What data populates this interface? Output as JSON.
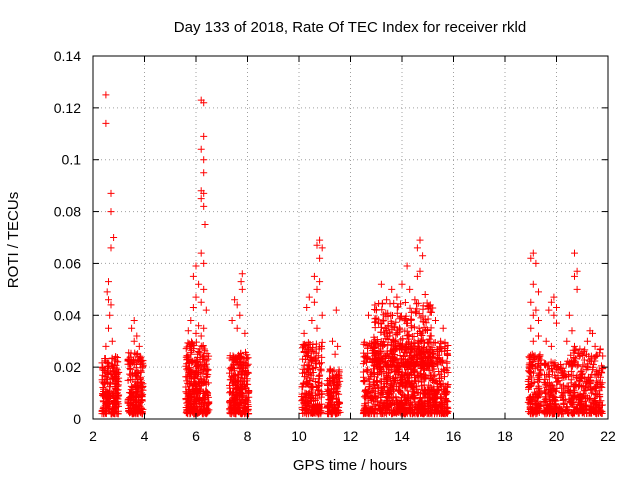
{
  "chart_data": {
    "type": "scatter",
    "title": "Day 133 of 2018, Rate Of TEC Index for receiver rkld",
    "xlabel": "GPS time / hours",
    "ylabel": "ROTI / TECUs",
    "xlim": [
      2,
      22
    ],
    "ylim": [
      0,
      0.14
    ],
    "x_ticks": [
      "2",
      "4",
      "6",
      "8",
      "10",
      "12",
      "14",
      "16",
      "18",
      "20",
      "22"
    ],
    "y_ticks": [
      "0",
      "0.02",
      "0.04",
      "0.06",
      "0.08",
      "0.1",
      "0.12",
      "0.14"
    ],
    "grid": true,
    "marker": "+",
    "color": "#ff0000",
    "series": [
      {
        "name": "ROTI",
        "clusters": [
          {
            "x": [
              2.35,
              3.0
            ],
            "y": [
              0.002,
              0.024
            ],
            "n": 220
          },
          {
            "x": [
              3.35,
              3.95
            ],
            "y": [
              0.002,
              0.026
            ],
            "n": 200
          },
          {
            "x": [
              5.6,
              6.5
            ],
            "y": [
              0.002,
              0.03
            ],
            "n": 320
          },
          {
            "x": [
              7.3,
              8.05
            ],
            "y": [
              0.002,
              0.026
            ],
            "n": 260
          },
          {
            "x": [
              10.1,
              10.9
            ],
            "y": [
              0.002,
              0.03
            ],
            "n": 220
          },
          {
            "x": [
              11.1,
              11.6
            ],
            "y": [
              0.002,
              0.02
            ],
            "n": 130
          },
          {
            "x": [
              12.5,
              15.8
            ],
            "y": [
              0.002,
              0.03
            ],
            "n": 900
          },
          {
            "x": [
              12.9,
              15.2
            ],
            "y": [
              0.02,
              0.045
            ],
            "n": 300
          },
          {
            "x": [
              18.9,
              19.4
            ],
            "y": [
              0.002,
              0.025
            ],
            "n": 140
          },
          {
            "x": [
              19.5,
              20.4
            ],
            "y": [
              0.002,
              0.022
            ],
            "n": 180
          },
          {
            "x": [
              20.4,
              21.8
            ],
            "y": [
              0.002,
              0.027
            ],
            "n": 300
          }
        ],
        "points": [
          [
            2.5,
            0.125
          ],
          [
            2.5,
            0.114
          ],
          [
            2.7,
            0.087
          ],
          [
            2.7,
            0.08
          ],
          [
            2.8,
            0.07
          ],
          [
            2.7,
            0.066
          ],
          [
            2.6,
            0.053
          ],
          [
            2.55,
            0.049
          ],
          [
            2.6,
            0.046
          ],
          [
            2.7,
            0.044
          ],
          [
            2.65,
            0.04
          ],
          [
            2.6,
            0.035
          ],
          [
            2.75,
            0.03
          ],
          [
            2.5,
            0.028
          ],
          [
            3.6,
            0.038
          ],
          [
            3.5,
            0.035
          ],
          [
            3.7,
            0.032
          ],
          [
            3.6,
            0.03
          ],
          [
            3.8,
            0.028
          ],
          [
            6.2,
            0.123
          ],
          [
            6.3,
            0.122
          ],
          [
            6.3,
            0.109
          ],
          [
            6.2,
            0.104
          ],
          [
            6.3,
            0.1
          ],
          [
            6.3,
            0.095
          ],
          [
            6.2,
            0.088
          ],
          [
            6.3,
            0.087
          ],
          [
            6.2,
            0.085
          ],
          [
            6.3,
            0.082
          ],
          [
            6.35,
            0.075
          ],
          [
            6.2,
            0.064
          ],
          [
            6.3,
            0.06
          ],
          [
            6.0,
            0.059
          ],
          [
            5.9,
            0.055
          ],
          [
            6.1,
            0.052
          ],
          [
            6.3,
            0.05
          ],
          [
            6.0,
            0.047
          ],
          [
            6.2,
            0.045
          ],
          [
            5.9,
            0.043
          ],
          [
            6.4,
            0.042
          ],
          [
            5.8,
            0.038
          ],
          [
            6.1,
            0.036
          ],
          [
            6.3,
            0.035
          ],
          [
            5.7,
            0.034
          ],
          [
            6.0,
            0.033
          ],
          [
            6.2,
            0.032
          ],
          [
            7.8,
            0.056
          ],
          [
            7.75,
            0.053
          ],
          [
            7.8,
            0.05
          ],
          [
            7.5,
            0.046
          ],
          [
            7.6,
            0.044
          ],
          [
            7.7,
            0.04
          ],
          [
            7.4,
            0.038
          ],
          [
            7.6,
            0.035
          ],
          [
            7.9,
            0.033
          ],
          [
            10.8,
            0.069
          ],
          [
            10.7,
            0.067
          ],
          [
            10.9,
            0.066
          ],
          [
            10.8,
            0.062
          ],
          [
            10.6,
            0.055
          ],
          [
            10.8,
            0.053
          ],
          [
            10.7,
            0.05
          ],
          [
            10.4,
            0.047
          ],
          [
            10.6,
            0.045
          ],
          [
            10.3,
            0.043
          ],
          [
            10.9,
            0.04
          ],
          [
            10.5,
            0.038
          ],
          [
            10.7,
            0.035
          ],
          [
            10.2,
            0.033
          ],
          [
            11.45,
            0.042
          ],
          [
            11.3,
            0.03
          ],
          [
            11.5,
            0.028
          ],
          [
            11.4,
            0.025
          ],
          [
            14.7,
            0.069
          ],
          [
            14.6,
            0.066
          ],
          [
            14.8,
            0.063
          ],
          [
            14.2,
            0.059
          ],
          [
            14.7,
            0.057
          ],
          [
            14.6,
            0.055
          ],
          [
            13.2,
            0.052
          ],
          [
            14.0,
            0.052
          ],
          [
            13.6,
            0.05
          ],
          [
            14.3,
            0.05
          ],
          [
            14.9,
            0.048
          ],
          [
            13.8,
            0.047
          ],
          [
            14.5,
            0.046
          ],
          [
            15.1,
            0.044
          ],
          [
            13.4,
            0.046
          ],
          [
            13.0,
            0.042
          ],
          [
            12.7,
            0.04
          ],
          [
            15.3,
            0.038
          ],
          [
            15.6,
            0.035
          ],
          [
            15.5,
            0.03
          ],
          [
            19.1,
            0.064
          ],
          [
            19.0,
            0.062
          ],
          [
            19.2,
            0.06
          ],
          [
            19.1,
            0.052
          ],
          [
            19.3,
            0.049
          ],
          [
            19.0,
            0.045
          ],
          [
            19.2,
            0.042
          ],
          [
            19.1,
            0.04
          ],
          [
            19.3,
            0.038
          ],
          [
            19.0,
            0.035
          ],
          [
            19.3,
            0.032
          ],
          [
            19.1,
            0.03
          ],
          [
            19.9,
            0.047
          ],
          [
            19.8,
            0.045
          ],
          [
            20.0,
            0.043
          ],
          [
            19.7,
            0.042
          ],
          [
            19.9,
            0.04
          ],
          [
            20.0,
            0.037
          ],
          [
            19.6,
            0.03
          ],
          [
            19.8,
            0.028
          ],
          [
            20.7,
            0.064
          ],
          [
            20.8,
            0.057
          ],
          [
            20.7,
            0.055
          ],
          [
            20.8,
            0.05
          ],
          [
            20.5,
            0.04
          ],
          [
            20.6,
            0.034
          ],
          [
            20.4,
            0.03
          ],
          [
            20.7,
            0.028
          ],
          [
            21.3,
            0.034
          ],
          [
            21.4,
            0.033
          ],
          [
            21.2,
            0.03
          ],
          [
            21.5,
            0.028
          ],
          [
            21.7,
            0.027
          ]
        ]
      }
    ]
  }
}
